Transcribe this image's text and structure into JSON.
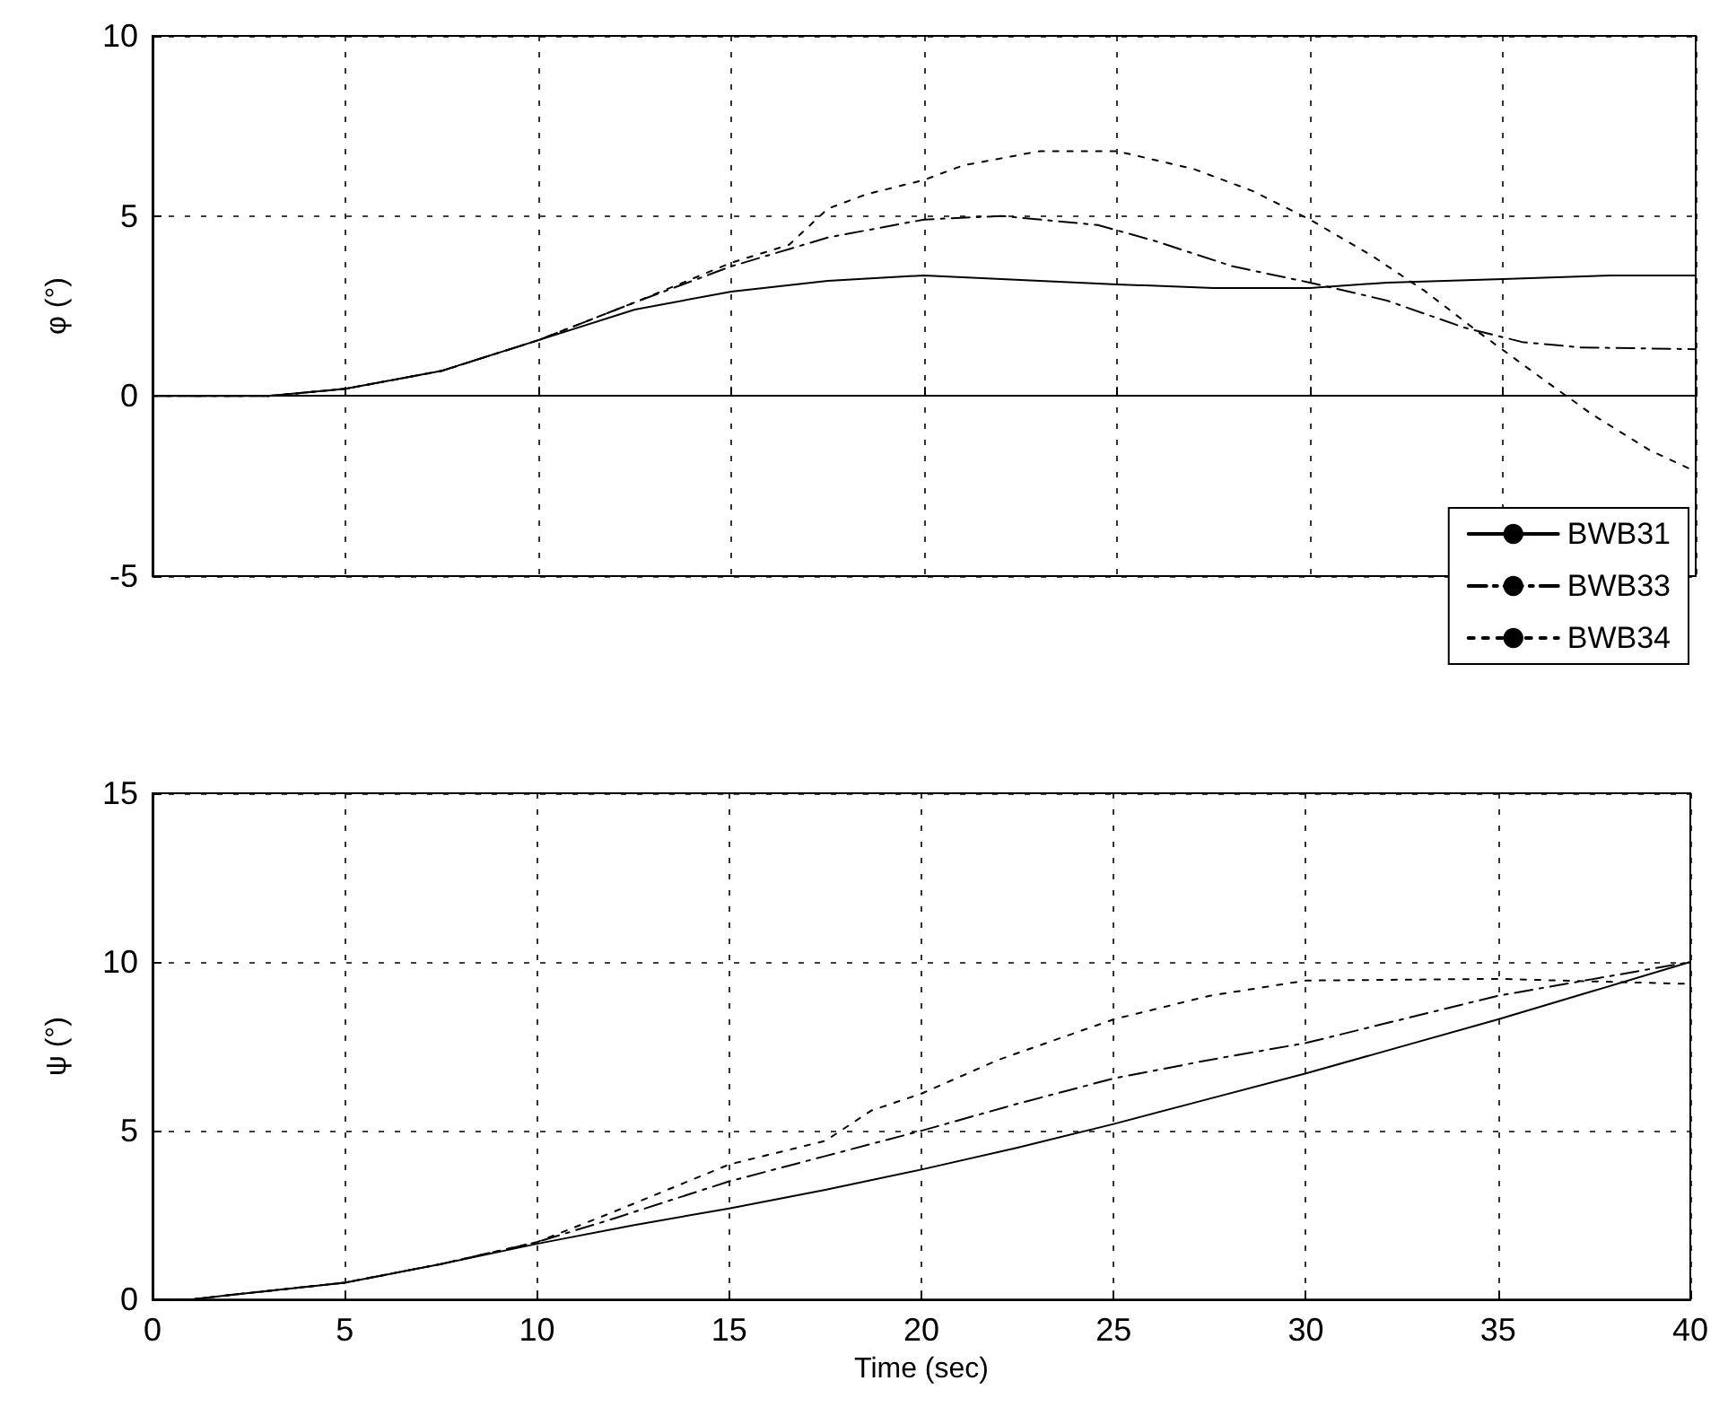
{
  "chart_data": [
    {
      "type": "line",
      "ylabel": "φ (°)",
      "xlim": [
        0,
        40
      ],
      "xticks": [
        0,
        5,
        10,
        15,
        20,
        25,
        30,
        35,
        40
      ],
      "ylim": [
        -5,
        10
      ],
      "yticks": [
        -5,
        0,
        5,
        10
      ],
      "grid": true,
      "legend": "bottom right",
      "tick_labels": "y",
      "series": [
        {
          "name": "BWB31",
          "color": "#000000",
          "line_style": "solid",
          "x": [
            0,
            3,
            5,
            7.5,
            10,
            12.5,
            15,
            17.5,
            20,
            22,
            25,
            27.5,
            30,
            32,
            35,
            37.8,
            40
          ],
          "values": [
            0,
            0,
            0.2,
            0.7,
            1.55,
            2.4,
            2.9,
            3.2,
            3.35,
            3.25,
            3.1,
            3.0,
            3.0,
            3.15,
            3.25,
            3.35,
            3.35
          ]
        },
        {
          "name": "BWB33",
          "color": "#000000",
          "line_style": "dashed",
          "x": [
            0,
            3,
            5,
            7.5,
            10,
            12.5,
            15,
            17.5,
            20,
            22,
            24.5,
            26,
            28,
            30,
            32,
            34,
            35.5,
            37,
            40
          ],
          "values": [
            0,
            0,
            0.2,
            0.7,
            1.55,
            2.6,
            3.6,
            4.4,
            4.9,
            5.0,
            4.75,
            4.3,
            3.6,
            3.15,
            2.65,
            1.9,
            1.5,
            1.35,
            1.3
          ]
        },
        {
          "name": "BWB34",
          "color": "#000000",
          "line_style": "dotted",
          "x": [
            0,
            3,
            5,
            7.5,
            10,
            12.5,
            15,
            16.5,
            17.5,
            18.5,
            20,
            21,
            23,
            25,
            27,
            28.5,
            30,
            31.6,
            33,
            34.4,
            36,
            37.3,
            38.8,
            40
          ],
          "values": [
            0,
            0,
            0.2,
            0.7,
            1.55,
            2.6,
            3.7,
            4.2,
            5.2,
            5.6,
            6.0,
            6.4,
            6.8,
            6.8,
            6.3,
            5.7,
            4.9,
            3.9,
            2.9,
            1.75,
            0.5,
            -0.5,
            -1.5,
            -2.1
          ]
        }
      ]
    },
    {
      "type": "line",
      "xlabel": "Time (sec)",
      "ylabel": "ψ (°)",
      "xlim": [
        0,
        40
      ],
      "xticks": [
        0,
        5,
        10,
        15,
        20,
        25,
        30,
        35,
        40
      ],
      "ylim": [
        0,
        15
      ],
      "yticks": [
        0,
        5,
        10,
        15
      ],
      "grid": true,
      "series": [
        {
          "color": "#000000",
          "line_style": "solid",
          "x": [
            0,
            1,
            2,
            5,
            7.5,
            10,
            12.5,
            15,
            17.5,
            20,
            22.5,
            25,
            27.5,
            30,
            32.5,
            35,
            37.5,
            40
          ],
          "values": [
            0,
            0,
            0.13,
            0.5,
            1.05,
            1.65,
            2.2,
            2.7,
            3.25,
            3.85,
            4.5,
            5.2,
            5.95,
            6.7,
            7.5,
            8.3,
            9.15,
            10.0
          ]
        },
        {
          "color": "#000000",
          "line_style": "dashed",
          "x": [
            0,
            1,
            2,
            5,
            7.5,
            10,
            12,
            15,
            17.5,
            20,
            22.5,
            25,
            27.5,
            30,
            32.5,
            35,
            37.5,
            40
          ],
          "values": [
            0,
            0,
            0.13,
            0.5,
            1.05,
            1.7,
            2.4,
            3.5,
            4.25,
            5.0,
            5.8,
            6.55,
            7.1,
            7.6,
            8.3,
            9.0,
            9.5,
            10.0
          ]
        },
        {
          "color": "#000000",
          "line_style": "dotted",
          "x": [
            0,
            1,
            2,
            5,
            7.5,
            10,
            12,
            15,
            17.5,
            18.7,
            20,
            22,
            25,
            27.5,
            30,
            35,
            40
          ],
          "values": [
            0,
            0,
            0.13,
            0.5,
            1.05,
            1.7,
            2.6,
            4.0,
            4.7,
            5.6,
            6.1,
            7.1,
            8.3,
            9.0,
            9.45,
            9.5,
            9.35
          ]
        }
      ]
    }
  ]
}
